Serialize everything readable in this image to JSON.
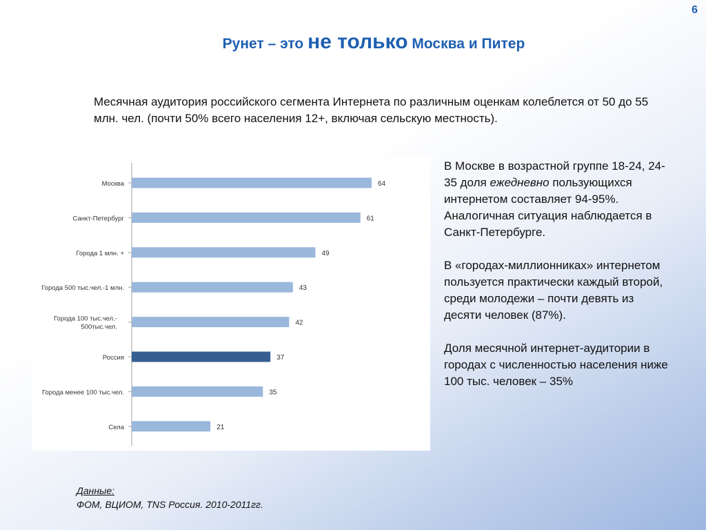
{
  "page_number": "6",
  "title": {
    "part1": "Рунет – это ",
    "emphasis": "не только",
    "part2": " Москва и Питер"
  },
  "intro_text": "Месячная аудитория российского сегмента Интернета по различным оценкам колеблется от 50 до 55 млн. чел. (почти 50% всего населения 12+, включая сельскую местность).",
  "right_text": {
    "p1_before": "В Москве в возрастной группе 18-24, 24-35 доля ",
    "p1_italic": "ежедневно",
    "p1_after": " пользующихся интернетом составляет 94-95%. Аналогичная ситуация наблюдается в Санкт-Петербурге.",
    "p2": "В «городах-миллионниках» интернетом пользуется практически каждый второй, среди молодежи – почти девять из десяти человек (87%).",
    "p3": "Доля месячной интернет-аудитории в городах с численностью населения ниже 100 тыс. человек – 35%"
  },
  "footer": {
    "label": "Данные:",
    "sources": "ФОМ, ВЦИОМ, TNS Россия. 2010-2011гг."
  },
  "colors": {
    "bar": "#9ab7dc",
    "bar_highlight": "#365f91",
    "axis": "#bfbfbf",
    "title": "#1f5fb0"
  },
  "chart_data": {
    "type": "bar",
    "orientation": "horizontal",
    "categories": [
      [
        "Москва"
      ],
      [
        "Санкт-Петербург"
      ],
      [
        "Города 1 млн. +"
      ],
      [
        "Города  500 тыс.чел.-1 млн."
      ],
      [
        "Города 100 тыс.чел.-",
        "500тыс.чел."
      ],
      [
        "Россия"
      ],
      [
        "Города менее 100 тыс.чел."
      ],
      [
        "Села"
      ]
    ],
    "values": [
      64,
      61,
      49,
      43,
      42,
      37,
      35,
      21
    ],
    "highlight_index": 5,
    "xlim": [
      0,
      64
    ],
    "grid": false,
    "legend": "none",
    "data_labels": true
  }
}
